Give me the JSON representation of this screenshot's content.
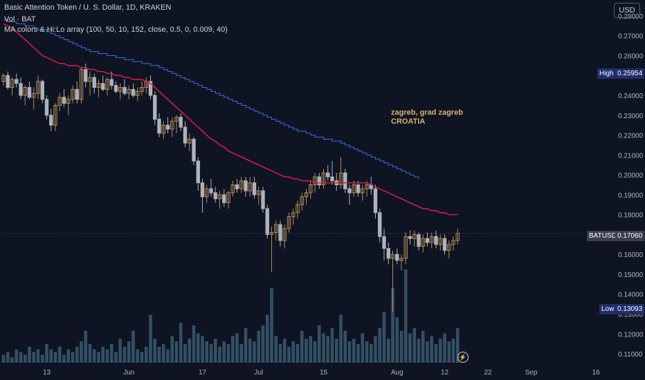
{
  "header": {
    "title": "Basic Attention Token / U. S. Dollar, 1D, KRAKEN",
    "volume_label": "Vol · BAT",
    "indicator_label": "MA colors & Hi:Lo array (100, 50, 10, 152, close, 0.5, 0, 0.009, 40)"
  },
  "currency_button": "USD",
  "annotation": {
    "line1": "zagreb, grad zagreb",
    "line2": "CROATIA"
  },
  "tags": {
    "high_label": "High",
    "high_value": "0.25954",
    "current_label": "BATUSD",
    "current_value": "0.17060",
    "low_label": "Low",
    "low_value": "0.13093"
  },
  "colors": {
    "background": "#0f1422",
    "candle_up": "#b58d57",
    "candle_down": "#aeb2bd",
    "ma_fast": "#e3194f",
    "ma_slow": "#3f6fe0",
    "volume": "#3a5a70",
    "high_tag": "#1f2e6b",
    "current_tag": "#3a3e4a"
  },
  "chart_data": {
    "type": "candlestick",
    "y_ticks": [
      "0.28000",
      "0.27000",
      "0.26000",
      "0.25000",
      "0.24000",
      "0.23000",
      "0.22000",
      "0.21000",
      "0.20000",
      "0.19000",
      "0.18000",
      "0.17000",
      "0.16000",
      "0.15000",
      "0.14000",
      "0.13000",
      "0.12000",
      "0.11000"
    ],
    "x_ticks": [
      {
        "label": "13",
        "i": 10
      },
      {
        "label": "Jun",
        "i": 29
      },
      {
        "label": "17",
        "i": 46
      },
      {
        "label": "Jul",
        "i": 59
      },
      {
        "label": "15",
        "i": 74
      },
      {
        "label": "Aug",
        "i": 91
      },
      {
        "label": "12",
        "i": 102
      },
      {
        "label": "22",
        "i": 112
      },
      {
        "label": "Sep",
        "i": 122
      },
      {
        "label": "16",
        "i": 137
      }
    ],
    "ylim": [
      0.1055,
      0.2845
    ],
    "x_slots": 155,
    "current_price": 0.1706,
    "candles": [
      [
        0.247,
        0.251,
        0.245,
        0.25
      ],
      [
        0.25,
        0.252,
        0.243,
        0.244
      ],
      [
        0.244,
        0.249,
        0.24,
        0.248
      ],
      [
        0.248,
        0.251,
        0.244,
        0.246
      ],
      [
        0.246,
        0.249,
        0.238,
        0.24
      ],
      [
        0.24,
        0.245,
        0.235,
        0.244
      ],
      [
        0.244,
        0.247,
        0.238,
        0.239
      ],
      [
        0.239,
        0.244,
        0.233,
        0.241
      ],
      [
        0.241,
        0.25,
        0.238,
        0.247
      ],
      [
        0.247,
        0.248,
        0.236,
        0.238
      ],
      [
        0.238,
        0.24,
        0.228,
        0.23
      ],
      [
        0.23,
        0.233,
        0.222,
        0.225
      ],
      [
        0.225,
        0.236,
        0.222,
        0.235
      ],
      [
        0.235,
        0.241,
        0.232,
        0.239
      ],
      [
        0.239,
        0.243,
        0.234,
        0.236
      ],
      [
        0.236,
        0.24,
        0.23,
        0.238
      ],
      [
        0.238,
        0.245,
        0.236,
        0.243
      ],
      [
        0.243,
        0.247,
        0.236,
        0.238
      ],
      [
        0.238,
        0.254,
        0.236,
        0.253
      ],
      [
        0.253,
        0.256,
        0.244,
        0.247
      ],
      [
        0.247,
        0.252,
        0.24,
        0.249
      ],
      [
        0.249,
        0.251,
        0.241,
        0.244
      ],
      [
        0.244,
        0.248,
        0.239,
        0.246
      ],
      [
        0.246,
        0.25,
        0.242,
        0.243
      ],
      [
        0.243,
        0.249,
        0.24,
        0.248
      ],
      [
        0.248,
        0.252,
        0.243,
        0.245
      ],
      [
        0.245,
        0.247,
        0.241,
        0.242
      ],
      [
        0.242,
        0.246,
        0.238,
        0.244
      ],
      [
        0.244,
        0.248,
        0.24,
        0.241
      ],
      [
        0.241,
        0.245,
        0.238,
        0.243
      ],
      [
        0.243,
        0.246,
        0.239,
        0.24
      ],
      [
        0.24,
        0.244,
        0.237,
        0.242
      ],
      [
        0.242,
        0.247,
        0.24,
        0.244
      ],
      [
        0.244,
        0.249,
        0.241,
        0.247
      ],
      [
        0.247,
        0.25,
        0.238,
        0.24
      ],
      [
        0.24,
        0.242,
        0.225,
        0.228
      ],
      [
        0.228,
        0.231,
        0.219,
        0.221
      ],
      [
        0.221,
        0.227,
        0.218,
        0.225
      ],
      [
        0.225,
        0.229,
        0.221,
        0.223
      ],
      [
        0.223,
        0.229,
        0.219,
        0.227
      ],
      [
        0.227,
        0.23,
        0.221,
        0.229
      ],
      [
        0.229,
        0.231,
        0.222,
        0.224
      ],
      [
        0.224,
        0.227,
        0.214,
        0.216
      ],
      [
        0.216,
        0.221,
        0.212,
        0.218
      ],
      [
        0.218,
        0.219,
        0.205,
        0.207
      ],
      [
        0.207,
        0.209,
        0.192,
        0.196
      ],
      [
        0.196,
        0.198,
        0.181,
        0.189
      ],
      [
        0.189,
        0.195,
        0.186,
        0.193
      ],
      [
        0.193,
        0.198,
        0.189,
        0.191
      ],
      [
        0.191,
        0.194,
        0.186,
        0.188
      ],
      [
        0.188,
        0.192,
        0.183,
        0.19
      ],
      [
        0.19,
        0.193,
        0.184,
        0.186
      ],
      [
        0.186,
        0.192,
        0.183,
        0.191
      ],
      [
        0.191,
        0.197,
        0.189,
        0.195
      ],
      [
        0.195,
        0.198,
        0.191,
        0.193
      ],
      [
        0.193,
        0.199,
        0.191,
        0.197
      ],
      [
        0.197,
        0.199,
        0.189,
        0.192
      ],
      [
        0.192,
        0.199,
        0.189,
        0.196
      ],
      [
        0.196,
        0.199,
        0.188,
        0.19
      ],
      [
        0.19,
        0.194,
        0.185,
        0.192
      ],
      [
        0.192,
        0.194,
        0.181,
        0.183
      ],
      [
        0.183,
        0.185,
        0.168,
        0.17
      ],
      [
        0.17,
        0.174,
        0.151,
        0.171
      ],
      [
        0.171,
        0.177,
        0.167,
        0.175
      ],
      [
        0.175,
        0.177,
        0.164,
        0.167
      ],
      [
        0.167,
        0.175,
        0.163,
        0.173
      ],
      [
        0.173,
        0.181,
        0.171,
        0.179
      ],
      [
        0.179,
        0.183,
        0.175,
        0.181
      ],
      [
        0.181,
        0.187,
        0.178,
        0.185
      ],
      [
        0.185,
        0.191,
        0.182,
        0.189
      ],
      [
        0.189,
        0.193,
        0.185,
        0.191
      ],
      [
        0.191,
        0.197,
        0.188,
        0.195
      ],
      [
        0.195,
        0.201,
        0.191,
        0.199
      ],
      [
        0.199,
        0.201,
        0.193,
        0.195
      ],
      [
        0.195,
        0.203,
        0.193,
        0.201
      ],
      [
        0.201,
        0.205,
        0.197,
        0.199
      ],
      [
        0.199,
        0.207,
        0.195,
        0.197
      ],
      [
        0.197,
        0.201,
        0.192,
        0.195
      ],
      [
        0.195,
        0.209,
        0.193,
        0.201
      ],
      [
        0.201,
        0.203,
        0.191,
        0.193
      ],
      [
        0.193,
        0.195,
        0.185,
        0.191
      ],
      [
        0.191,
        0.197,
        0.189,
        0.195
      ],
      [
        0.195,
        0.197,
        0.189,
        0.191
      ],
      [
        0.191,
        0.195,
        0.187,
        0.193
      ],
      [
        0.193,
        0.197,
        0.189,
        0.195
      ],
      [
        0.195,
        0.199,
        0.19,
        0.193
      ],
      [
        0.193,
        0.195,
        0.178,
        0.181
      ],
      [
        0.181,
        0.183,
        0.166,
        0.169
      ],
      [
        0.169,
        0.173,
        0.157,
        0.163
      ],
      [
        0.163,
        0.166,
        0.155,
        0.158
      ],
      [
        0.158,
        0.162,
        0.131,
        0.16
      ],
      [
        0.16,
        0.163,
        0.155,
        0.157
      ],
      [
        0.157,
        0.16,
        0.152,
        0.158
      ],
      [
        0.158,
        0.171,
        0.155,
        0.169
      ],
      [
        0.169,
        0.172,
        0.165,
        0.168
      ],
      [
        0.168,
        0.172,
        0.164,
        0.17
      ],
      [
        0.17,
        0.171,
        0.162,
        0.164
      ],
      [
        0.164,
        0.17,
        0.161,
        0.168
      ],
      [
        0.168,
        0.171,
        0.164,
        0.166
      ],
      [
        0.166,
        0.171,
        0.163,
        0.169
      ],
      [
        0.169,
        0.172,
        0.163,
        0.165
      ],
      [
        0.165,
        0.17,
        0.162,
        0.168
      ],
      [
        0.168,
        0.17,
        0.16,
        0.162
      ],
      [
        0.162,
        0.167,
        0.158,
        0.165
      ],
      [
        0.165,
        0.169,
        0.162,
        0.167
      ],
      [
        0.167,
        0.173,
        0.165,
        0.1706
      ]
    ],
    "ma_fast": [
      0.276,
      0.275,
      0.274,
      0.272,
      0.27,
      0.268,
      0.266,
      0.264,
      0.262,
      0.26,
      0.259,
      0.258,
      0.257,
      0.256,
      0.256,
      0.255,
      0.255,
      0.255,
      0.254,
      0.254,
      0.253,
      0.253,
      0.252,
      0.252,
      0.251,
      0.251,
      0.25,
      0.25,
      0.249,
      0.249,
      0.248,
      0.248,
      0.248,
      0.247,
      0.246,
      0.244,
      0.242,
      0.24,
      0.238,
      0.236,
      0.234,
      0.232,
      0.23,
      0.228,
      0.226,
      0.224,
      0.222,
      0.22,
      0.218,
      0.217,
      0.215,
      0.214,
      0.212,
      0.211,
      0.21,
      0.209,
      0.208,
      0.207,
      0.206,
      0.205,
      0.204,
      0.203,
      0.202,
      0.201,
      0.2,
      0.199,
      0.199,
      0.198,
      0.198,
      0.197,
      0.197,
      0.197,
      0.196,
      0.196,
      0.196,
      0.196,
      0.196,
      0.196,
      0.196,
      0.196,
      0.196,
      0.196,
      0.196,
      0.196,
      0.196,
      0.195,
      0.194,
      0.193,
      0.192,
      0.191,
      0.19,
      0.189,
      0.188,
      0.187,
      0.186,
      0.185,
      0.184,
      0.183,
      0.183,
      0.182,
      0.182,
      0.181,
      0.181,
      0.18,
      0.18,
      0.18
    ],
    "ma_slow_start": 0,
    "ma_slow": [
      0.278,
      0.277,
      0.277,
      0.276,
      0.276,
      0.275,
      0.275,
      0.274,
      0.273,
      0.273,
      0.272,
      0.271,
      0.27,
      0.269,
      0.268,
      0.267,
      0.266,
      0.265,
      0.264,
      0.263,
      0.262,
      0.262,
      0.261,
      0.261,
      0.26,
      0.26,
      0.259,
      0.259,
      0.258,
      0.258,
      0.257,
      0.257,
      0.256,
      0.256,
      0.255,
      0.255,
      0.254,
      0.253,
      0.252,
      0.251,
      0.25,
      0.249,
      0.248,
      0.247,
      0.246,
      0.245,
      0.244,
      0.243,
      0.242,
      0.241,
      0.24,
      0.239,
      0.238,
      0.237,
      0.236,
      0.235,
      0.234,
      0.233,
      0.232,
      0.231,
      0.23,
      0.229,
      0.228,
      0.227,
      0.226,
      0.225,
      0.224,
      0.223,
      0.222,
      0.222,
      0.221,
      0.22,
      0.219,
      0.219,
      0.218,
      0.218,
      0.217,
      0.217,
      0.216,
      0.215,
      0.214,
      0.213,
      0.212,
      0.211,
      0.21,
      0.209,
      0.208,
      0.207,
      0.206,
      0.205,
      0.204,
      0.203,
      0.202,
      0.201,
      0.2,
      0.199,
      0.198
    ],
    "volume": [
      3,
      4,
      2,
      5,
      4,
      3,
      6,
      4,
      5,
      3,
      7,
      5,
      4,
      6,
      3,
      5,
      4,
      6,
      8,
      12,
      7,
      5,
      4,
      6,
      5,
      7,
      4,
      9,
      6,
      8,
      12,
      5,
      4,
      6,
      18,
      9,
      6,
      7,
      5,
      10,
      8,
      15,
      7,
      9,
      14,
      11,
      10,
      8,
      7,
      9,
      6,
      8,
      7,
      10,
      11,
      7,
      13,
      9,
      8,
      12,
      14,
      18,
      28,
      10,
      7,
      9,
      6,
      8,
      7,
      12,
      9,
      10,
      8,
      14,
      11,
      10,
      13,
      9,
      18,
      12,
      8,
      9,
      7,
      11,
      8,
      7,
      10,
      13,
      19,
      9,
      28,
      17,
      12,
      35,
      11,
      13,
      9,
      12,
      8,
      10,
      7,
      9,
      11,
      8,
      9,
      13
    ]
  }
}
